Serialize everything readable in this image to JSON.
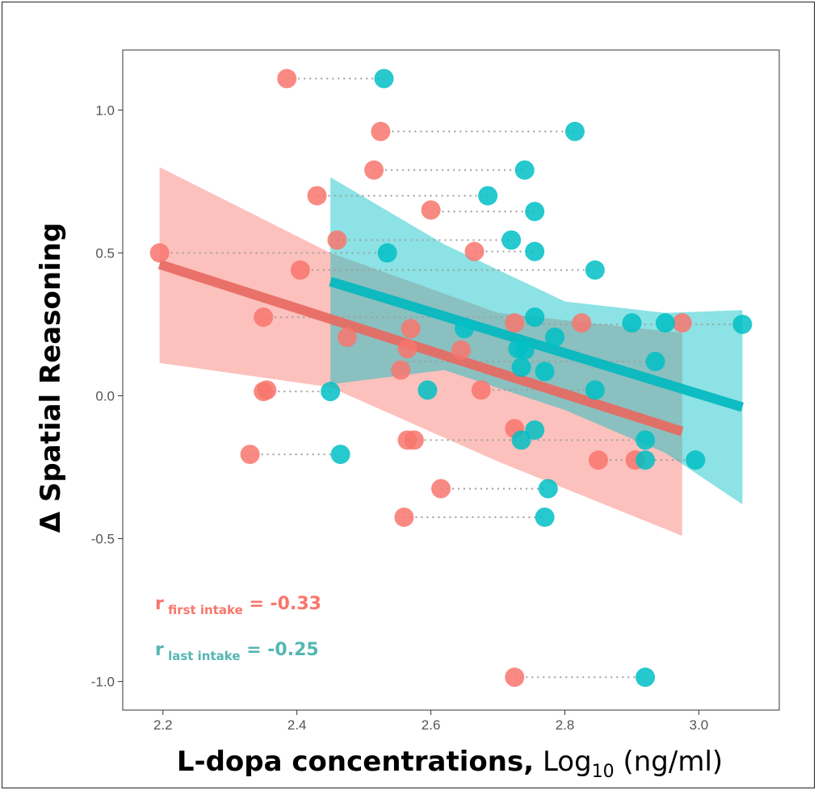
{
  "chart_data": {
    "type": "scatter",
    "xlabel_main": "L-dopa concentrations,",
    "xlabel_unit_prefix": " Log",
    "xlabel_unit_sub": "10",
    "xlabel_unit_suffix": " (ng/ml)",
    "ylabel": "Δ Spatial Reasoning",
    "xlim": [
      2.14,
      3.12
    ],
    "ylim": [
      -1.1,
      1.21
    ],
    "x_ticks": [
      "2.2",
      "2.4",
      "2.6",
      "2.8",
      "3.0"
    ],
    "x_tick_values": [
      2.2,
      2.4,
      2.6,
      2.8,
      3.0
    ],
    "y_ticks": [
      "1.0",
      "0.5",
      "0.0",
      "-0.5",
      "-1.0"
    ],
    "y_tick_values": [
      1.0,
      0.5,
      0.0,
      -0.5,
      -1.0
    ],
    "grid": false,
    "series": [
      {
        "name": "first intake",
        "color": "#f8766d",
        "points": [
          [
            2.385,
            1.11
          ],
          [
            2.525,
            0.925
          ],
          [
            2.515,
            0.79
          ],
          [
            2.43,
            0.7
          ],
          [
            2.6,
            0.65
          ],
          [
            2.46,
            0.545
          ],
          [
            2.195,
            0.5
          ],
          [
            2.665,
            0.505
          ],
          [
            2.405,
            0.44
          ],
          [
            2.35,
            0.275
          ],
          [
            2.475,
            0.205
          ],
          [
            2.57,
            0.235
          ],
          [
            2.565,
            0.165
          ],
          [
            2.645,
            0.16
          ],
          [
            2.555,
            0.09
          ],
          [
            2.725,
            0.255
          ],
          [
            2.825,
            0.255
          ],
          [
            2.975,
            0.255
          ],
          [
            2.35,
            0.015
          ],
          [
            2.355,
            0.02
          ],
          [
            2.675,
            0.02
          ],
          [
            2.725,
            -0.115
          ],
          [
            2.565,
            -0.155
          ],
          [
            2.575,
            -0.155
          ],
          [
            2.33,
            -0.205
          ],
          [
            2.85,
            -0.225
          ],
          [
            2.905,
            -0.225
          ],
          [
            2.615,
            -0.325
          ],
          [
            2.56,
            -0.425
          ],
          [
            2.725,
            -0.985
          ]
        ]
      },
      {
        "name": "last intake",
        "color": "#00bfc4",
        "points": [
          [
            2.53,
            1.11
          ],
          [
            2.815,
            0.925
          ],
          [
            2.74,
            0.79
          ],
          [
            2.685,
            0.7
          ],
          [
            2.755,
            0.645
          ],
          [
            2.72,
            0.545
          ],
          [
            2.535,
            0.5
          ],
          [
            2.755,
            0.505
          ],
          [
            2.845,
            0.44
          ],
          [
            2.755,
            0.275
          ],
          [
            2.9,
            0.255
          ],
          [
            2.95,
            0.255
          ],
          [
            3.065,
            0.25
          ],
          [
            2.65,
            0.235
          ],
          [
            2.785,
            0.205
          ],
          [
            2.73,
            0.165
          ],
          [
            2.74,
            0.16
          ],
          [
            2.935,
            0.12
          ],
          [
            2.735,
            0.1
          ],
          [
            2.77,
            0.085
          ],
          [
            2.45,
            0.015
          ],
          [
            2.595,
            0.02
          ],
          [
            2.845,
            0.02
          ],
          [
            2.755,
            -0.12
          ],
          [
            2.735,
            -0.155
          ],
          [
            2.92,
            -0.155
          ],
          [
            2.92,
            -0.225
          ],
          [
            2.995,
            -0.225
          ],
          [
            2.465,
            -0.205
          ],
          [
            2.775,
            -0.325
          ],
          [
            2.77,
            -0.425
          ],
          [
            2.92,
            -0.985
          ]
        ]
      }
    ],
    "pairs": [
      [
        2.385,
        2.53,
        1.11
      ],
      [
        2.525,
        2.815,
        0.925
      ],
      [
        2.515,
        2.74,
        0.79
      ],
      [
        2.43,
        2.685,
        0.7
      ],
      [
        2.6,
        2.755,
        0.645
      ],
      [
        2.46,
        2.72,
        0.545
      ],
      [
        2.195,
        2.535,
        0.5
      ],
      [
        2.665,
        2.755,
        0.505
      ],
      [
        2.405,
        2.845,
        0.44
      ],
      [
        2.35,
        2.755,
        0.275
      ],
      [
        2.725,
        3.065,
        0.25
      ],
      [
        2.565,
        2.935,
        0.12
      ],
      [
        2.355,
        2.45,
        0.015
      ],
      [
        2.675,
        2.845,
        0.02
      ],
      [
        2.565,
        2.92,
        -0.155
      ],
      [
        2.33,
        2.465,
        -0.205
      ],
      [
        2.85,
        2.995,
        -0.225
      ],
      [
        2.615,
        2.775,
        -0.325
      ],
      [
        2.56,
        2.77,
        -0.425
      ],
      [
        2.725,
        2.92,
        -0.985
      ]
    ],
    "fits": [
      {
        "name": "first intake",
        "color": "#f8766d",
        "x_range": [
          2.195,
          2.975
        ],
        "y_start": 0.46,
        "y_end": -0.125,
        "ci_upper": [
          [
            2.195,
            0.8
          ],
          [
            2.45,
            0.5
          ],
          [
            2.7,
            0.29
          ],
          [
            2.975,
            0.22
          ]
        ],
        "ci_lower": [
          [
            2.195,
            0.115
          ],
          [
            2.45,
            0.03
          ],
          [
            2.7,
            -0.23
          ],
          [
            2.975,
            -0.49
          ]
        ]
      },
      {
        "name": "last intake",
        "color": "#00bfc4",
        "x_range": [
          2.45,
          3.065
        ],
        "y_start": 0.4,
        "y_end": -0.04,
        "ci_upper": [
          [
            2.45,
            0.765
          ],
          [
            2.62,
            0.53
          ],
          [
            2.8,
            0.33
          ],
          [
            2.95,
            0.29
          ],
          [
            3.065,
            0.3
          ]
        ],
        "ci_lower": [
          [
            2.45,
            0.04
          ],
          [
            2.62,
            0.09
          ],
          [
            2.8,
            -0.05
          ],
          [
            2.95,
            -0.2
          ],
          [
            3.065,
            -0.38
          ]
        ]
      }
    ],
    "annotations": [
      {
        "r": "r",
        "sub": " first intake",
        "value": " = -0.33",
        "color": "#f8766d"
      },
      {
        "r": "r",
        "sub": " last intake",
        "value": " = -0.25",
        "color": "#00bfc4"
      }
    ]
  }
}
